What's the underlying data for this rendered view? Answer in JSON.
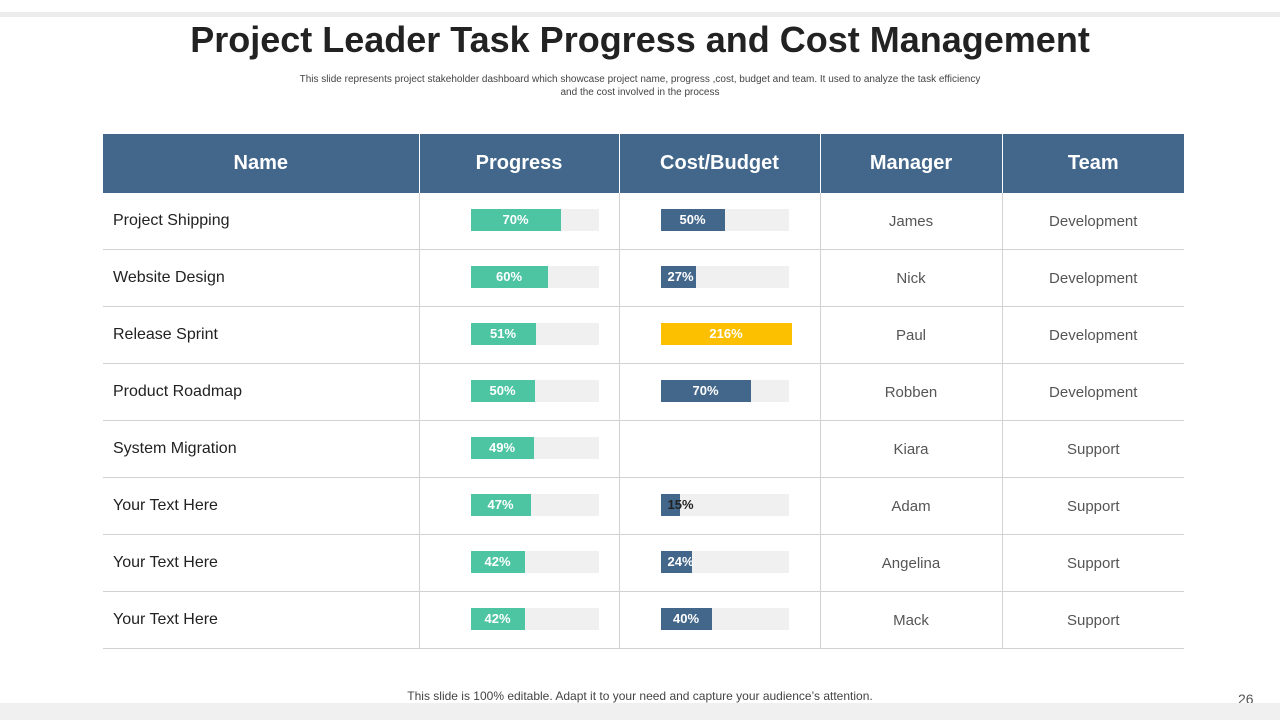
{
  "title": "Project Leader Task Progress and Cost Management",
  "subtitle": "This slide represents project stakeholder dashboard which showcase project name, progress ,cost, budget and team. It used to analyze the task efficiency and  the cost involved in the process",
  "table": {
    "headers": [
      "Name",
      "Progress",
      "Cost/Budget",
      "Manager",
      "Team"
    ],
    "rows": [
      {
        "name": "Project Shipping",
        "progress": 70,
        "progress_label": "70%",
        "cost": 50,
        "cost_label": "50%",
        "manager": "James",
        "team": "Development"
      },
      {
        "name": "Website Design",
        "progress": 60,
        "progress_label": "60%",
        "cost": 27,
        "cost_label": "27%",
        "manager": "Nick",
        "team": "Development"
      },
      {
        "name": "Release Sprint",
        "progress": 51,
        "progress_label": "51%",
        "cost": 216,
        "cost_label": "216%",
        "manager": "Paul",
        "team": "Development"
      },
      {
        "name": "Product Roadmap",
        "progress": 50,
        "progress_label": "50%",
        "cost": 70,
        "cost_label": "70%",
        "manager": "Robben",
        "team": "Development"
      },
      {
        "name": "System Migration",
        "progress": 49,
        "progress_label": "49%",
        "cost": null,
        "cost_label": "",
        "manager": "Kiara",
        "team": "Support"
      },
      {
        "name": "Your Text Here",
        "progress": 47,
        "progress_label": "47%",
        "cost": 15,
        "cost_label": "15%",
        "manager": "Adam",
        "team": "Support"
      },
      {
        "name": "Your Text Here",
        "progress": 42,
        "progress_label": "42%",
        "cost": 24,
        "cost_label": "24%",
        "manager": "Angelina",
        "team": "Support"
      },
      {
        "name": "Your Text Here",
        "progress": 42,
        "progress_label": "42%",
        "cost": 40,
        "cost_label": "40%",
        "manager": "Mack",
        "team": "Support"
      }
    ]
  },
  "colors": {
    "header": "#43678b",
    "progress_fill": "#4dc4a2",
    "cost_fill": "#43678b",
    "over_budget_fill": "#fdc000"
  },
  "footer": "This slide is 100% editable. Adapt it to your need and capture your audience’s attention.",
  "page_number": "26"
}
